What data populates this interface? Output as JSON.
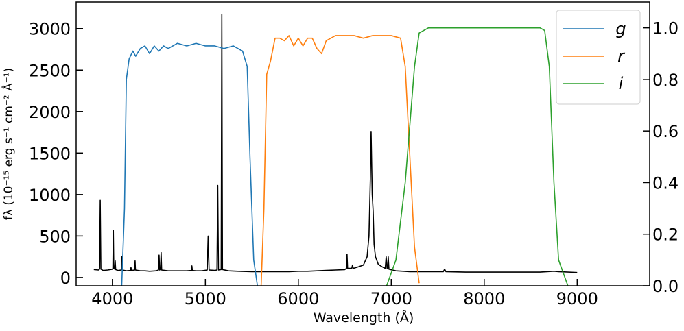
{
  "chart_data": {
    "type": "line",
    "xlabel": "Wavelength (Å)",
    "ylabel": "fλ (10⁻¹⁵ erg s⁻¹ cm⁻² Å⁻¹)",
    "xlim": [
      3610,
      9780
    ],
    "ylim": [
      -100,
      3320
    ],
    "y2lim": [
      0,
      1.1
    ],
    "xticks": [
      4000,
      5000,
      6000,
      7000,
      8000,
      9000
    ],
    "yticks": [
      0,
      500,
      1000,
      1500,
      2000,
      2500,
      3000
    ],
    "y2ticks": [
      {
        "value": 0,
        "label": "0.0"
      },
      0.2,
      0.4,
      0.6,
      0.8,
      {
        "value": 1,
        "label": "1.0"
      }
    ],
    "legend": "upper right",
    "series": [
      {
        "color": "#000000",
        "x": [
          3800,
          3850,
          3862,
          3869,
          3876,
          3900,
          3950,
          4000,
          4005,
          4010,
          4015,
          4025,
          4030,
          4035,
          4060,
          4095,
          4101,
          4107,
          4150,
          4195,
          4200,
          4205,
          4240,
          4244,
          4248,
          4300,
          4340,
          4350,
          4400,
          4470,
          4495,
          4502,
          4508,
          4518,
          4524,
          4530,
          4600,
          4700,
          4800,
          4850,
          4855,
          4860,
          4900,
          4960,
          5020,
          5030,
          5040,
          5100,
          5125,
          5133,
          5141,
          5170,
          5177,
          5184,
          5250,
          5350,
          5500,
          5700,
          5800,
          5900,
          6000,
          6100,
          6200,
          6300,
          6400,
          6500,
          6518,
          6524,
          6530,
          6575,
          6583,
          6591,
          6650,
          6700,
          6740,
          6760,
          6775,
          6783,
          6795,
          6805,
          6815,
          6830,
          6860,
          6900,
          6935,
          6945,
          6955,
          6962,
          6967,
          6975,
          7050,
          7200,
          7400,
          7560,
          7574,
          7588,
          7800,
          8000,
          8200,
          8400,
          8600,
          8750,
          8800,
          9000
        ],
        "values": [
          95,
          90,
          100,
          930,
          100,
          85,
          90,
          100,
          110,
          570,
          110,
          100,
          200,
          95,
          85,
          90,
          250,
          90,
          80,
          85,
          120,
          85,
          90,
          200,
          90,
          80,
          80,
          80,
          75,
          80,
          90,
          270,
          90,
          100,
          300,
          90,
          80,
          80,
          80,
          85,
          140,
          85,
          80,
          80,
          90,
          500,
          90,
          85,
          90,
          1110,
          90,
          95,
          3170,
          95,
          80,
          75,
          70,
          70,
          70,
          70,
          75,
          75,
          80,
          85,
          90,
          95,
          110,
          280,
          110,
          110,
          150,
          110,
          130,
          150,
          250,
          500,
          1200,
          1760,
          1000,
          800,
          400,
          250,
          160,
          130,
          110,
          250,
          110,
          110,
          250,
          100,
          80,
          70,
          70,
          70,
          100,
          70,
          65,
          65,
          65,
          65,
          65,
          75,
          70,
          60
        ]
      },
      {
        "name": "g",
        "color": "#1f77b4",
        "axis": "y2",
        "x": [
          4100,
          4130,
          4150,
          4180,
          4220,
          4250,
          4300,
          4350,
          4400,
          4450,
          4500,
          4550,
          4600,
          4700,
          4800,
          4900,
          5000,
          5100,
          5200,
          5300,
          5400,
          5450,
          5480,
          5520,
          5560
        ],
        "values": [
          0,
          0.3,
          0.8,
          0.88,
          0.91,
          0.89,
          0.92,
          0.93,
          0.9,
          0.93,
          0.91,
          0.93,
          0.92,
          0.94,
          0.93,
          0.94,
          0.93,
          0.93,
          0.92,
          0.93,
          0.91,
          0.85,
          0.5,
          0.1,
          0
        ]
      },
      {
        "name": "r",
        "color": "#ff7f0e",
        "axis": "y2",
        "x": [
          5600,
          5630,
          5660,
          5700,
          5750,
          5800,
          5850,
          5900,
          5950,
          6000,
          6050,
          6100,
          6150,
          6200,
          6250,
          6300,
          6400,
          6500,
          6600,
          6700,
          6800,
          6900,
          7000,
          7100,
          7150,
          7200,
          7250,
          7300
        ],
        "values": [
          0,
          0.3,
          0.82,
          0.87,
          0.96,
          0.96,
          0.95,
          0.97,
          0.93,
          0.96,
          0.93,
          0.96,
          0.96,
          0.92,
          0.9,
          0.95,
          0.97,
          0.97,
          0.97,
          0.96,
          0.97,
          0.97,
          0.97,
          0.96,
          0.85,
          0.5,
          0.15,
          0.01
        ]
      },
      {
        "name": "i",
        "color": "#2ca02c",
        "axis": "y2",
        "x": [
          6950,
          7050,
          7150,
          7250,
          7300,
          7400,
          7600,
          7800,
          8000,
          8200,
          8400,
          8600,
          8650,
          8700,
          8750,
          8800,
          8900
        ],
        "values": [
          0,
          0.1,
          0.4,
          0.85,
          0.98,
          1,
          1,
          1,
          1,
          1,
          1,
          1,
          0.99,
          0.85,
          0.4,
          0.1,
          0
        ]
      }
    ]
  }
}
